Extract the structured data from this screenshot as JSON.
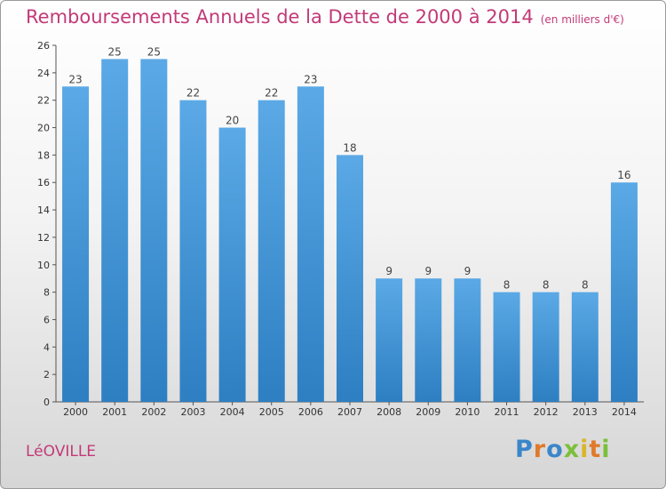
{
  "title": "Remboursements Annuels de la Dette de 2000 à 2014",
  "unit_note": "(en milliers d'€)",
  "commune": "LéOVILLE",
  "logo": {
    "text": "Proxiti"
  },
  "colors": {
    "bar_top": "#5ba9e6",
    "bar_bottom": "#2d7fc2",
    "title": "#c23a78"
  },
  "chart_data": {
    "type": "bar",
    "title": "Remboursements Annuels de la Dette de 2000 à 2014",
    "xlabel": "",
    "ylabel": "",
    "categories": [
      "2000",
      "2001",
      "2002",
      "2003",
      "2004",
      "2005",
      "2006",
      "2007",
      "2008",
      "2009",
      "2010",
      "2011",
      "2012",
      "2013",
      "2014"
    ],
    "values": [
      23,
      25,
      25,
      22,
      20,
      22,
      23,
      18,
      9,
      9,
      9,
      8,
      8,
      8,
      16
    ],
    "ylim": [
      0,
      26
    ],
    "yticks": [
      0,
      2,
      4,
      6,
      8,
      10,
      12,
      14,
      16,
      18,
      20,
      22,
      24,
      26
    ],
    "grid": false
  }
}
